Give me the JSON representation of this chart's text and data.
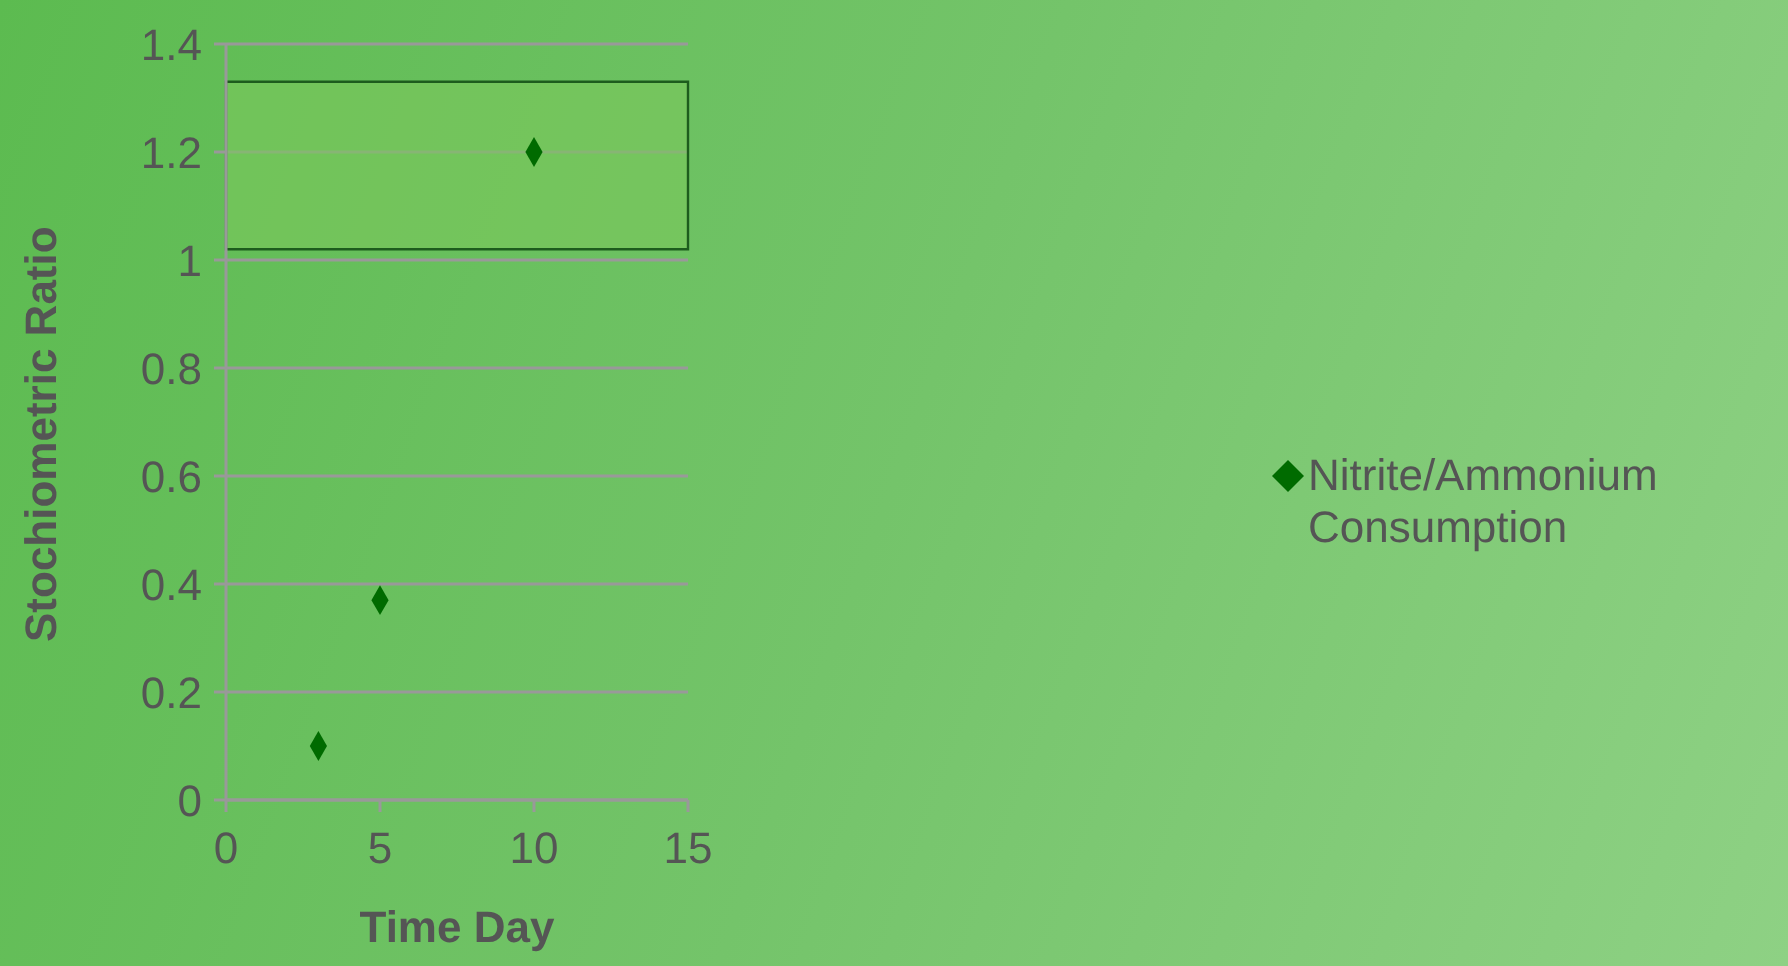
{
  "chart_data": {
    "type": "scatter",
    "xlabel": "Time Day",
    "ylabel": "Stochiometric Ratio",
    "series": [
      {
        "name": "Nitrite/Ammonium Consumption",
        "color": "#006b00",
        "x": [
          3,
          5,
          10
        ],
        "values": [
          0.1,
          0.37,
          1.2
        ]
      }
    ],
    "xlim": [
      0,
      15
    ],
    "xticks": [
      0,
      5,
      10,
      15
    ],
    "ylim": [
      0,
      1.4
    ],
    "yticks": [
      0,
      0.2,
      0.4,
      0.6,
      0.8,
      1,
      1.2,
      1.4
    ],
    "bands": [
      {
        "axis": "y",
        "from": 1.02,
        "to": 1.33,
        "color": "#7cc85c"
      }
    ],
    "grid": "y",
    "legend": "right",
    "marker": "diamond"
  }
}
